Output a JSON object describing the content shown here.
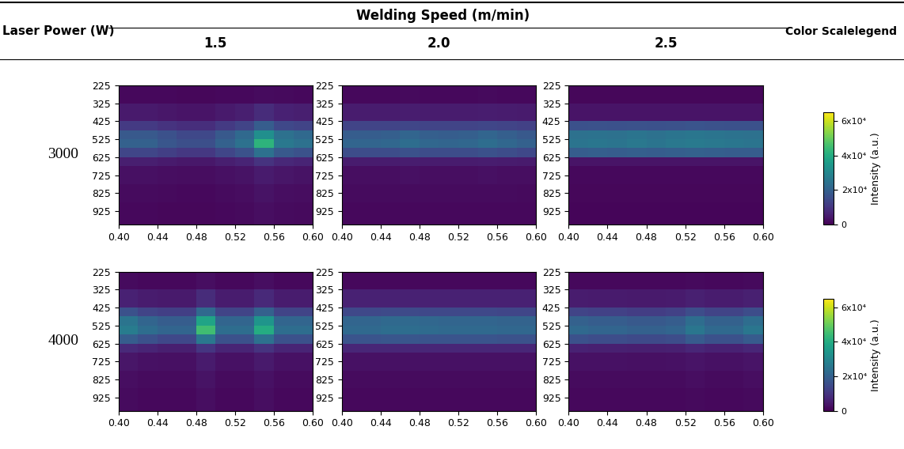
{
  "header": {
    "row_title": "Laser Power (W)",
    "column_title": "Welding Speed (m/min)",
    "legend_title": "Color Scalelegend"
  },
  "row_labels": [
    "3000",
    "4000"
  ],
  "column_labels": [
    "1.5",
    "2.0",
    "2.5"
  ],
  "colorbars": [
    {
      "label": "Intensity (a.u.)",
      "range": [
        0,
        65000
      ],
      "ticks": [
        0,
        {
          "value": 20000,
          "label": "2x10⁴"
        },
        {
          "value": 40000,
          "label": "4x10⁴"
        },
        {
          "value": 60000,
          "label": "6x10⁴"
        }
      ]
    },
    {
      "label": "Intensity (a.u.)",
      "range": [
        0,
        65000
      ],
      "ticks": [
        0,
        {
          "value": 20000,
          "label": "2x10⁴"
        },
        {
          "value": 40000,
          "label": "4x10⁴"
        },
        {
          "value": 60000,
          "label": "6x10⁴"
        }
      ]
    }
  ],
  "chart_data": [
    {
      "type": "heatmap",
      "x_edges": [
        0.4,
        0.42,
        0.44,
        0.46,
        0.48,
        0.5,
        0.52,
        0.54,
        0.56,
        0.58,
        0.6
      ],
      "y_edges": [
        225,
        325,
        425,
        475,
        525,
        575,
        625,
        675,
        775,
        875,
        1000
      ],
      "xlim": [
        0.4,
        0.6
      ],
      "ylim": [
        1000,
        225
      ],
      "xticks": [
        {
          "value": 0.4,
          "label": "0.40"
        },
        {
          "value": 0.44,
          "label": "0.44"
        },
        {
          "value": 0.48,
          "label": "0.48"
        },
        {
          "value": 0.52,
          "label": "0.52"
        },
        {
          "value": 0.56,
          "label": "0.56"
        },
        {
          "value": 0.6,
          "label": "0.60"
        }
      ],
      "yticks": [
        225,
        325,
        425,
        525,
        625,
        725,
        825,
        925
      ],
      "cells": [
        [
          1400,
          1400,
          1300,
          1200,
          1200,
          1400,
          1500,
          1800,
          1600,
          1500
        ],
        [
          4500,
          4500,
          4000,
          3500,
          3500,
          4500,
          5500,
          8000,
          6000,
          5500
        ],
        [
          11000,
          11000,
          9500,
          8500,
          8500,
          11000,
          13000,
          19000,
          14000,
          13000
        ],
        [
          18000,
          18000,
          16000,
          14000,
          14000,
          18000,
          22000,
          32000,
          24000,
          22000
        ],
        [
          20000,
          20000,
          17500,
          15500,
          15500,
          20000,
          24000,
          42000,
          26000,
          24000
        ],
        [
          13500,
          13500,
          12000,
          10500,
          10500,
          13500,
          16500,
          24000,
          18000,
          16500
        ],
        [
          5500,
          5500,
          4800,
          4200,
          4200,
          5500,
          6600,
          9600,
          7200,
          6600
        ],
        [
          2700,
          2700,
          2400,
          2100,
          2100,
          2700,
          3300,
          4800,
          3600,
          3300
        ],
        [
          1800,
          1800,
          1600,
          1400,
          1400,
          1800,
          2200,
          3200,
          2400,
          2200
        ],
        [
          1400,
          1400,
          1200,
          1100,
          1100,
          1400,
          1600,
          2400,
          1800,
          1600
        ]
      ]
    },
    {
      "type": "heatmap",
      "x_edges": [
        0.4,
        0.42,
        0.44,
        0.46,
        0.48,
        0.5,
        0.52,
        0.54,
        0.56,
        0.58,
        0.6
      ],
      "y_edges": [
        225,
        325,
        425,
        475,
        525,
        575,
        625,
        675,
        775,
        875,
        1000
      ],
      "xlim": [
        0.4,
        0.6
      ],
      "ylim": [
        1000,
        225
      ],
      "xticks": [
        {
          "value": 0.4,
          "label": "0.40"
        },
        {
          "value": 0.44,
          "label": "0.44"
        },
        {
          "value": 0.48,
          "label": "0.48"
        },
        {
          "value": 0.52,
          "label": "0.52"
        },
        {
          "value": 0.56,
          "label": "0.56"
        },
        {
          "value": 0.6,
          "label": "0.60"
        }
      ],
      "yticks": [
        225,
        325,
        425,
        525,
        625,
        725,
        825,
        925
      ],
      "cells": [
        [
          1500,
          1500,
          1500,
          1600,
          1500,
          1500,
          1500,
          1600,
          1500,
          1400
        ],
        [
          5000,
          5000,
          5000,
          5300,
          5000,
          5000,
          5000,
          5300,
          5000,
          4800
        ],
        [
          13000,
          13000,
          13000,
          13500,
          13000,
          13000,
          13000,
          13500,
          13000,
          12500
        ],
        [
          19000,
          19000,
          19500,
          21000,
          19500,
          19000,
          19500,
          21000,
          19500,
          18000
        ],
        [
          21000,
          21000,
          21500,
          23000,
          21500,
          21000,
          21500,
          23000,
          21500,
          20000
        ],
        [
          15000,
          15000,
          15000,
          16000,
          15000,
          15000,
          15000,
          16000,
          15000,
          14000
        ],
        [
          5000,
          5000,
          5000,
          5300,
          5000,
          5000,
          5000,
          5300,
          5000,
          4800
        ],
        [
          2500,
          2500,
          2500,
          2600,
          2500,
          2500,
          2500,
          2600,
          2500,
          2400
        ],
        [
          1800,
          1800,
          1800,
          1900,
          1800,
          1800,
          1800,
          1900,
          1800,
          1700
        ],
        [
          1400,
          1400,
          1400,
          1500,
          1400,
          1400,
          1400,
          1500,
          1400,
          1300
        ]
      ]
    },
    {
      "type": "heatmap",
      "x_edges": [
        0.4,
        0.42,
        0.44,
        0.46,
        0.48,
        0.5,
        0.52,
        0.54,
        0.56,
        0.58,
        0.6
      ],
      "y_edges": [
        225,
        325,
        425,
        475,
        525,
        575,
        625,
        675,
        775,
        875,
        1000
      ],
      "xlim": [
        0.4,
        0.6
      ],
      "ylim": [
        1000,
        225
      ],
      "xticks": [
        {
          "value": 0.4,
          "label": "0.40"
        },
        {
          "value": 0.44,
          "label": "0.44"
        },
        {
          "value": 0.48,
          "label": "0.48"
        },
        {
          "value": 0.52,
          "label": "0.52"
        },
        {
          "value": 0.56,
          "label": "0.56"
        },
        {
          "value": 0.6,
          "label": "0.60"
        }
      ],
      "yticks": [
        225,
        325,
        425,
        525,
        625,
        725,
        825,
        925
      ],
      "cells": [
        [
          1200,
          1200,
          1200,
          1200,
          1200,
          1200,
          1200,
          1200,
          1200,
          1200
        ],
        [
          3500,
          3500,
          3500,
          3500,
          3500,
          3500,
          3500,
          3500,
          3500,
          3500
        ],
        [
          16000,
          16500,
          16000,
          16500,
          16000,
          16500,
          17000,
          16500,
          16000,
          16000
        ],
        [
          24000,
          24500,
          24000,
          25000,
          24000,
          25000,
          25500,
          25000,
          24500,
          24000
        ],
        [
          25000,
          25500,
          25000,
          26000,
          25000,
          26000,
          26500,
          26000,
          25500,
          25000
        ],
        [
          19000,
          19500,
          19000,
          19500,
          19000,
          19500,
          20000,
          19500,
          19000,
          19000
        ],
        [
          3500,
          3500,
          3500,
          3500,
          3500,
          3500,
          3500,
          3500,
          3500,
          3500
        ],
        [
          1500,
          1500,
          1500,
          1500,
          1500,
          1500,
          1500,
          1500,
          1500,
          1500
        ],
        [
          1200,
          1200,
          1200,
          1200,
          1200,
          1200,
          1200,
          1200,
          1200,
          1200
        ],
        [
          1000,
          1000,
          1000,
          1000,
          1000,
          1000,
          1000,
          1000,
          1000,
          1000
        ]
      ]
    },
    {
      "type": "heatmap",
      "x_edges": [
        0.4,
        0.42,
        0.44,
        0.46,
        0.48,
        0.5,
        0.52,
        0.54,
        0.56,
        0.58,
        0.6
      ],
      "y_edges": [
        225,
        325,
        425,
        475,
        525,
        575,
        625,
        675,
        775,
        875,
        1000
      ],
      "xlim": [
        0.4,
        0.6
      ],
      "ylim": [
        1000,
        225
      ],
      "xticks": [
        {
          "value": 0.4,
          "label": "0.40"
        },
        {
          "value": 0.44,
          "label": "0.44"
        },
        {
          "value": 0.48,
          "label": "0.48"
        },
        {
          "value": 0.52,
          "label": "0.52"
        },
        {
          "value": 0.56,
          "label": "0.56"
        },
        {
          "value": 0.6,
          "label": "0.60"
        }
      ],
      "yticks": [
        225,
        325,
        425,
        525,
        625,
        725,
        825,
        925
      ],
      "cells": [
        [
          1800,
          1500,
          1400,
          1400,
          2400,
          1500,
          1500,
          2300,
          1500,
          1500
        ],
        [
          6000,
          5000,
          4500,
          4500,
          8000,
          5000,
          5000,
          7500,
          5000,
          5000
        ],
        [
          16000,
          13000,
          12000,
          12000,
          22000,
          13000,
          13000,
          20000,
          13000,
          13000
        ],
        [
          25000,
          21000,
          19000,
          19000,
          38000,
          21000,
          21000,
          34000,
          21000,
          21000
        ],
        [
          27000,
          23000,
          21000,
          21000,
          45000,
          23000,
          23000,
          40000,
          23000,
          23000
        ],
        [
          19000,
          16000,
          14000,
          14000,
          26000,
          16000,
          16000,
          24000,
          16000,
          16000
        ],
        [
          7500,
          6500,
          5500,
          5500,
          10000,
          6500,
          6500,
          9500,
          6500,
          6500
        ],
        [
          3600,
          3000,
          2700,
          2700,
          4800,
          3000,
          3000,
          4500,
          3000,
          3000
        ],
        [
          2400,
          2000,
          1800,
          1800,
          3200,
          2000,
          2000,
          3000,
          2000,
          2000
        ],
        [
          1800,
          1500,
          1400,
          1400,
          2400,
          1500,
          1500,
          2300,
          1500,
          1500
        ]
      ]
    },
    {
      "type": "heatmap",
      "x_edges": [
        0.4,
        0.42,
        0.44,
        0.46,
        0.48,
        0.5,
        0.52,
        0.54,
        0.56,
        0.58,
        0.6
      ],
      "y_edges": [
        225,
        325,
        425,
        475,
        525,
        575,
        625,
        675,
        775,
        875,
        1000
      ],
      "xlim": [
        0.4,
        0.6
      ],
      "ylim": [
        1000,
        225
      ],
      "xticks": [
        {
          "value": 0.4,
          "label": "0.40"
        },
        {
          "value": 0.44,
          "label": "0.44"
        },
        {
          "value": 0.48,
          "label": "0.48"
        },
        {
          "value": 0.52,
          "label": "0.52"
        },
        {
          "value": 0.56,
          "label": "0.56"
        },
        {
          "value": 0.6,
          "label": "0.60"
        }
      ],
      "yticks": [
        225,
        325,
        425,
        525,
        625,
        725,
        825,
        925
      ],
      "cells": [
        [
          1500,
          1500,
          1500,
          1500,
          1500,
          1500,
          1500,
          1500,
          1500,
          1500
        ],
        [
          6000,
          6000,
          6000,
          6000,
          6000,
          6000,
          6000,
          6000,
          6000,
          6000
        ],
        [
          14000,
          14000,
          14500,
          14500,
          14000,
          14000,
          14000,
          14000,
          13500,
          13500
        ],
        [
          21000,
          21000,
          22000,
          22000,
          21500,
          21000,
          21000,
          21000,
          20500,
          20500
        ],
        [
          22000,
          22000,
          23000,
          23000,
          22500,
          22000,
          22000,
          22000,
          21500,
          21500
        ],
        [
          17000,
          17000,
          17500,
          17500,
          17000,
          17000,
          17000,
          17000,
          16500,
          16500
        ],
        [
          7000,
          7000,
          7000,
          7000,
          7000,
          7000,
          7000,
          7000,
          7000,
          7000
        ],
        [
          3000,
          3000,
          3000,
          3000,
          3000,
          3000,
          3000,
          3000,
          3000,
          3000
        ],
        [
          2000,
          2000,
          2000,
          2000,
          2000,
          2000,
          2000,
          2000,
          2000,
          2000
        ],
        [
          1500,
          1500,
          1500,
          1500,
          1500,
          1500,
          1500,
          1500,
          1500,
          1500
        ]
      ]
    },
    {
      "type": "heatmap",
      "x_edges": [
        0.4,
        0.42,
        0.44,
        0.46,
        0.48,
        0.5,
        0.52,
        0.54,
        0.56,
        0.58,
        0.6
      ],
      "y_edges": [
        225,
        325,
        425,
        475,
        525,
        575,
        625,
        675,
        775,
        875,
        1000
      ],
      "xlim": [
        0.4,
        0.6
      ],
      "ylim": [
        1000,
        225
      ],
      "xticks": [
        {
          "value": 0.4,
          "label": "0.40"
        },
        {
          "value": 0.44,
          "label": "0.44"
        },
        {
          "value": 0.48,
          "label": "0.48"
        },
        {
          "value": 0.52,
          "label": "0.52"
        },
        {
          "value": 0.56,
          "label": "0.56"
        },
        {
          "value": 0.6,
          "label": "0.60"
        }
      ],
      "yticks": [
        225,
        325,
        425,
        525,
        625,
        725,
        825,
        925
      ],
      "cells": [
        [
          1500,
          1400,
          1400,
          1400,
          1400,
          1400,
          1700,
          1500,
          1500,
          1700
        ],
        [
          5000,
          4800,
          4800,
          4500,
          4500,
          4800,
          5800,
          5000,
          5000,
          5800
        ],
        [
          13000,
          12500,
          12500,
          11500,
          11500,
          12500,
          15000,
          13000,
          13000,
          15000
        ],
        [
          20000,
          19000,
          19000,
          18000,
          18000,
          19000,
          23000,
          20000,
          20000,
          23000
        ],
        [
          22000,
          21000,
          21000,
          20000,
          20000,
          21000,
          25500,
          22000,
          22000,
          25500
        ],
        [
          16000,
          15000,
          15000,
          14500,
          14500,
          15000,
          18500,
          16000,
          16000,
          18500
        ],
        [
          6000,
          5700,
          5700,
          5400,
          5400,
          5700,
          6900,
          6000,
          6000,
          6900
        ],
        [
          3000,
          2900,
          2900,
          2700,
          2700,
          2900,
          3500,
          3000,
          3000,
          3500
        ],
        [
          2000,
          1900,
          1900,
          1800,
          1800,
          1900,
          2300,
          2000,
          2000,
          2300
        ],
        [
          1500,
          1400,
          1400,
          1400,
          1400,
          1400,
          1700,
          1500,
          1500,
          1700
        ]
      ]
    }
  ]
}
